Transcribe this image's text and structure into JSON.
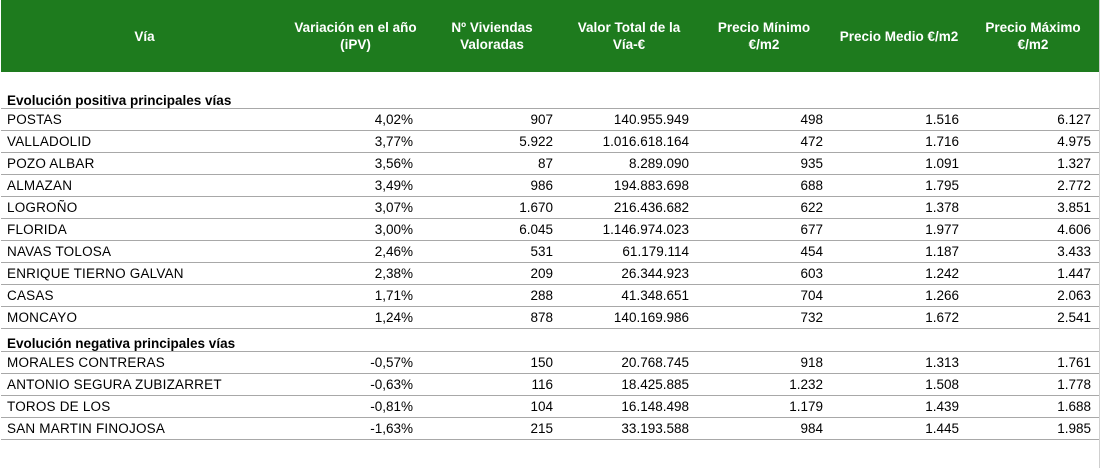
{
  "header": {
    "via": "Vía",
    "variacion": "Variación en el año (iPV)",
    "viviendas": "Nº Viviendas Valoradas",
    "valor_total": "Valor Total de la Vía-€",
    "precio_minimo": "Precio Mínimo €/m2",
    "precio_medio": "Precio Medio €/m2",
    "precio_maximo": "Precio Máximo €/m2"
  },
  "sections": {
    "positive_title": "Evolución positiva principales vías",
    "negative_title": "Evolución negativa principales vías"
  },
  "positive_rows": [
    {
      "via": "POSTAS",
      "variacion": "4,02%",
      "viviendas": "907",
      "valor": "140.955.949",
      "min": "498",
      "medio": "1.516",
      "max": "6.127"
    },
    {
      "via": "VALLADOLID",
      "variacion": "3,77%",
      "viviendas": "5.922",
      "valor": "1.016.618.164",
      "min": "472",
      "medio": "1.716",
      "max": "4.975"
    },
    {
      "via": "POZO ALBAR",
      "variacion": "3,56%",
      "viviendas": "87",
      "valor": "8.289.090",
      "min": "935",
      "medio": "1.091",
      "max": "1.327"
    },
    {
      "via": "ALMAZAN",
      "variacion": "3,49%",
      "viviendas": "986",
      "valor": "194.883.698",
      "min": "688",
      "medio": "1.795",
      "max": "2.772"
    },
    {
      "via": "LOGROÑO",
      "variacion": "3,07%",
      "viviendas": "1.670",
      "valor": "216.436.682",
      "min": "622",
      "medio": "1.378",
      "max": "3.851"
    },
    {
      "via": "FLORIDA",
      "variacion": "3,00%",
      "viviendas": "6.045",
      "valor": "1.146.974.023",
      "min": "677",
      "medio": "1.977",
      "max": "4.606"
    },
    {
      "via": "NAVAS TOLOSA",
      "variacion": "2,46%",
      "viviendas": "531",
      "valor": "61.179.114",
      "min": "454",
      "medio": "1.187",
      "max": "3.433"
    },
    {
      "via": "ENRIQUE TIERNO GALVAN",
      "variacion": "2,38%",
      "viviendas": "209",
      "valor": "26.344.923",
      "min": "603",
      "medio": "1.242",
      "max": "1.447"
    },
    {
      "via": "CASAS",
      "variacion": "1,71%",
      "viviendas": "288",
      "valor": "41.348.651",
      "min": "704",
      "medio": "1.266",
      "max": "2.063"
    },
    {
      "via": "MONCAYO",
      "variacion": "1,24%",
      "viviendas": "878",
      "valor": "140.169.986",
      "min": "732",
      "medio": "1.672",
      "max": "2.541"
    }
  ],
  "negative_rows": [
    {
      "via": "MORALES CONTRERAS",
      "variacion": "-0,57%",
      "viviendas": "150",
      "valor": "20.768.745",
      "min": "918",
      "medio": "1.313",
      "max": "1.761"
    },
    {
      "via": "ANTONIO SEGURA ZUBIZARRET",
      "variacion": "-0,63%",
      "viviendas": "116",
      "valor": "18.425.885",
      "min": "1.232",
      "medio": "1.508",
      "max": "1.778"
    },
    {
      "via": "TOROS DE LOS",
      "variacion": "-0,81%",
      "viviendas": "104",
      "valor": "16.148.498",
      "min": "1.179",
      "medio": "1.439",
      "max": "1.688"
    },
    {
      "via": "SAN MARTIN FINOJOSA",
      "variacion": "-1,63%",
      "viviendas": "215",
      "valor": "33.193.588",
      "min": "984",
      "medio": "1.445",
      "max": "1.985"
    }
  ],
  "colors": {
    "header_bg": "#1e7b1e",
    "header_text": "#ffffff",
    "row_border": "#a8a8a8"
  }
}
